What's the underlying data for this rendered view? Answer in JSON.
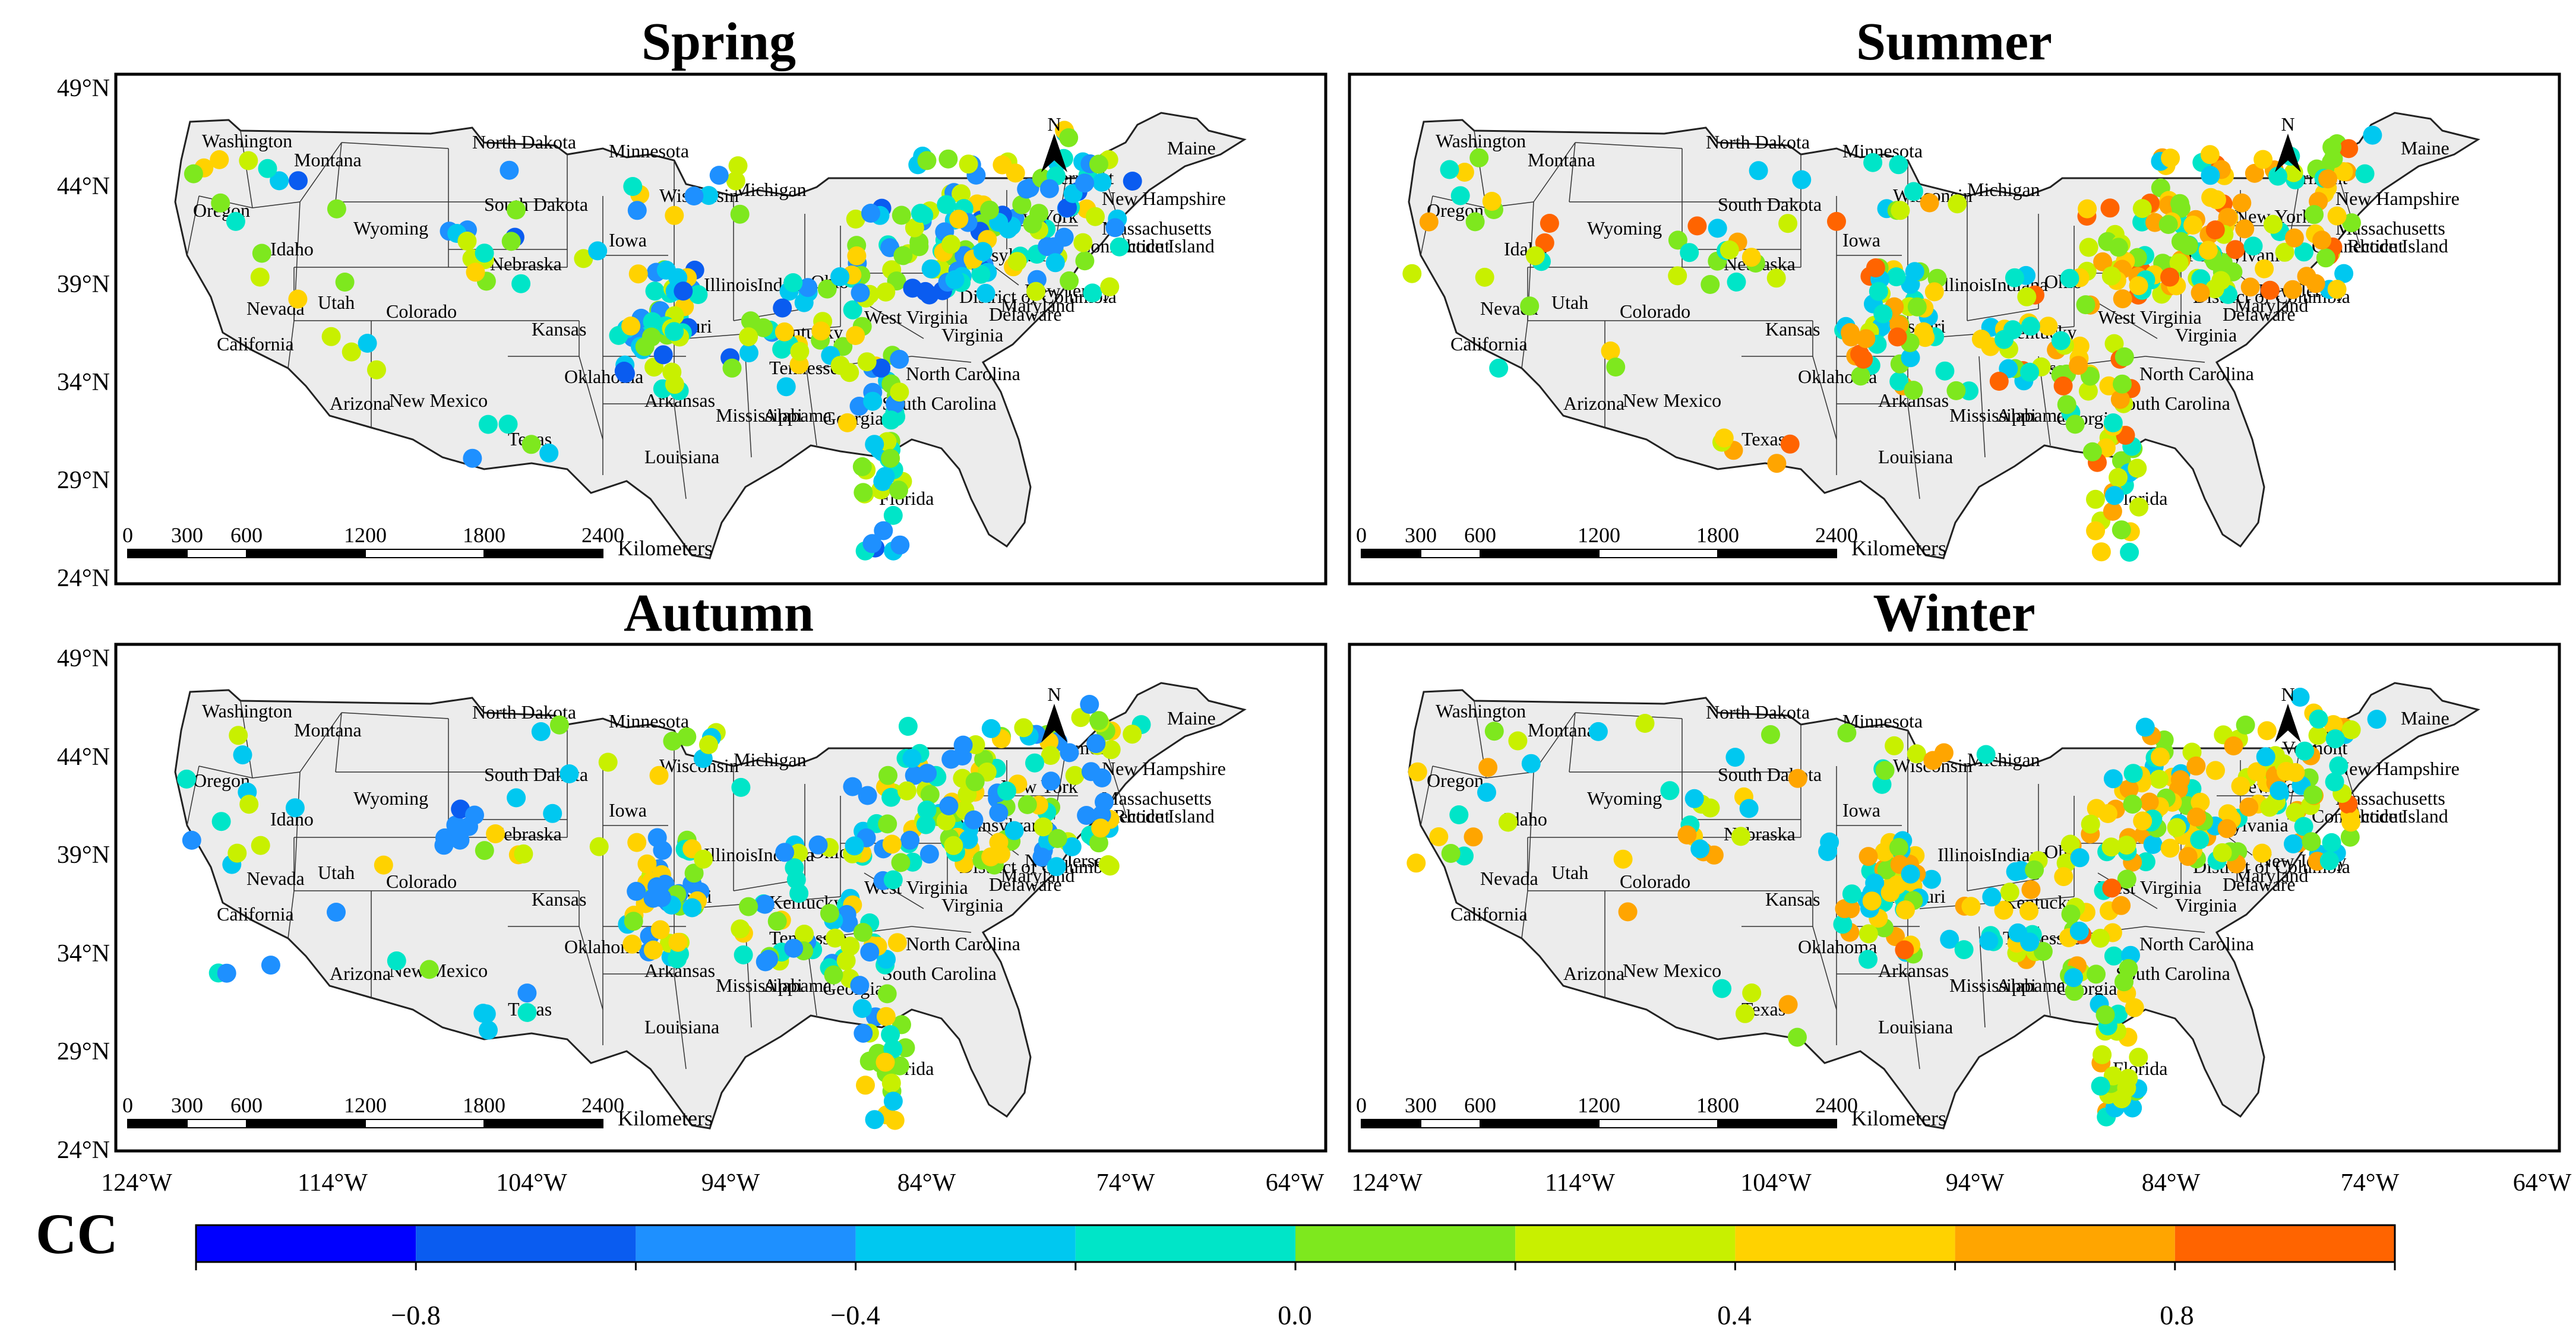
{
  "figure": {
    "panels": [
      {
        "title": "Spring"
      },
      {
        "title": "Summer"
      },
      {
        "title": "Autumn"
      },
      {
        "title": "Winter"
      }
    ],
    "lat_ticks": [
      "49°N",
      "44°N",
      "39°N",
      "34°N",
      "29°N",
      "24°N"
    ],
    "lon_ticks": [
      "124°W",
      "114°W",
      "104°W",
      "94°W",
      "84°W",
      "74°W",
      "64°W"
    ],
    "north_label": "N",
    "scale_bar": {
      "ticks": [
        "0",
        "300",
        "600",
        "1200",
        "1800",
        "2400"
      ],
      "unit": "Kilometers"
    },
    "state_labels": [
      "Washington",
      "Oregon",
      "California",
      "Idaho",
      "Nevada",
      "Montana",
      "Wyoming",
      "Utah",
      "Arizona",
      "Colorado",
      "New Mexico",
      "North Dakota",
      "South Dakota",
      "Nebraska",
      "Kansas",
      "Oklahoma",
      "Texas",
      "Minnesota",
      "Iowa",
      "Missouri",
      "Arkansas",
      "Louisiana",
      "Wisconsin",
      "Illinois",
      "Michigan",
      "Indiana",
      "Ohio",
      "Kentucky",
      "Tennessee",
      "Mississippi",
      "Alabama",
      "Georgia",
      "Florida",
      "South Carolina",
      "North Carolina",
      "Virginia",
      "West Virginia",
      "Pennsylvania",
      "New York",
      "New Jersey",
      "Maryland",
      "Delaware",
      "District of Columbia",
      "Vermont",
      "New Hampshire",
      "Maine",
      "Massachusetts",
      "Connecticut",
      "Rhode Island"
    ],
    "colorbar": {
      "title": "CC",
      "ticks": [
        "−0.8",
        "−0.4",
        "0.0",
        "0.4",
        "0.8"
      ],
      "colors": [
        "#0000ff",
        "#0a5cf0",
        "#1e90ff",
        "#00c8f0",
        "#00e5c8",
        "#7ee81e",
        "#c8f000",
        "#ffd200",
        "#ffa500",
        "#ff6400",
        "#ff0000"
      ]
    }
  }
}
